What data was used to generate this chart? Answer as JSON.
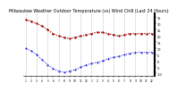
{
  "title": "Milwaukee Weather Outdoor Temperature (vs) Wind Chill (Last 24 Hours)",
  "title_fontsize": 3.5,
  "background_color": "#ffffff",
  "grid_color": "#888888",
  "temp_color": "#dd0000",
  "windchill_color": "#0000dd",
  "black_color": "#000000",
  "ylim": [
    -12,
    38
  ],
  "ytick_values": [
    -10,
    -5,
    0,
    5,
    10,
    15,
    20,
    25,
    30,
    35
  ],
  "ytick_labels": [
    "-10",
    "-5",
    "0",
    "5",
    "10",
    "15",
    "20",
    "25",
    "30",
    "35"
  ],
  "temp_values": [
    33,
    32,
    30,
    28,
    25,
    22,
    20,
    19,
    18,
    19,
    20,
    21,
    22,
    23,
    23,
    22,
    21,
    20,
    21,
    22,
    22,
    22,
    22,
    22
  ],
  "windchill_values": [
    10,
    8,
    5,
    1,
    -3,
    -6,
    -8,
    -9,
    -8,
    -7,
    -5,
    -3,
    -2,
    -1,
    0,
    2,
    3,
    4,
    5,
    6,
    7,
    7,
    7,
    7
  ],
  "black_values": [
    33,
    32,
    30,
    28,
    25,
    22,
    20,
    19,
    18,
    19,
    20,
    21,
    22,
    23,
    23,
    22,
    21,
    20,
    21,
    22,
    22,
    22,
    22,
    22
  ],
  "n_points": 24,
  "x_tick_positions": [
    0,
    1,
    2,
    3,
    4,
    5,
    6,
    7,
    8,
    9,
    10,
    11,
    12,
    13,
    14,
    15,
    16,
    17,
    18,
    19,
    20,
    21,
    22,
    23
  ],
  "x_tick_labels": [
    "1",
    "2",
    "3",
    "4",
    "5",
    "6",
    "7",
    "8",
    "9",
    "10",
    "11",
    "12",
    "1",
    "2",
    "3",
    "4",
    "5",
    "6",
    "7",
    "8",
    "9",
    "10",
    "11",
    "12"
  ],
  "vgrid_positions": [
    0,
    2,
    4,
    6,
    8,
    10,
    12,
    14,
    16,
    18,
    20,
    22
  ]
}
